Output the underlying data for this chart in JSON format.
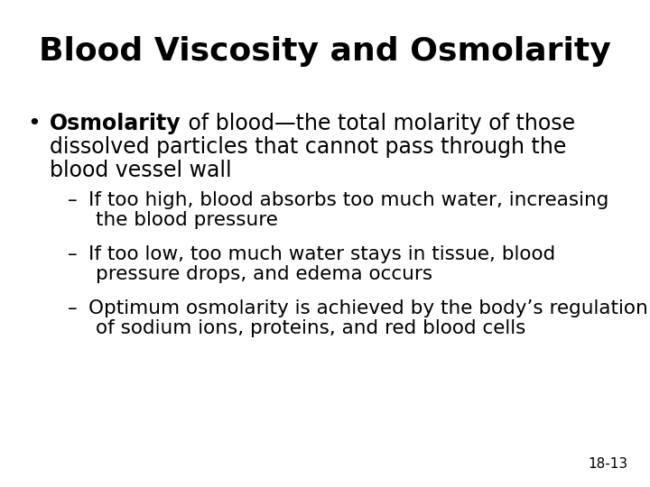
{
  "title": "Blood Viscosity and Osmolarity",
  "background_color": "#ffffff",
  "text_color": "#000000",
  "title_fontsize": 26,
  "body_fontsize": 17,
  "sub_fontsize": 15.5,
  "page_number": "18-13",
  "page_num_fontsize": 11,
  "bullet_bold_word": "Osmolarity",
  "bullet_line1_rest": " of blood—the total molarity of those",
  "bullet_line2": "dissolved particles that cannot pass through the",
  "bullet_line3": "blood vessel wall",
  "sub_bullets": [
    [
      "If too high, blood absorbs too much water, increasing",
      "the blood pressure"
    ],
    [
      "If too low, too much water stays in tissue, blood",
      "pressure drops, and edema occurs"
    ],
    [
      "Optimum osmolarity is achieved by the body’s regulation",
      "of sodium ions, proteins, and red blood cells"
    ]
  ]
}
